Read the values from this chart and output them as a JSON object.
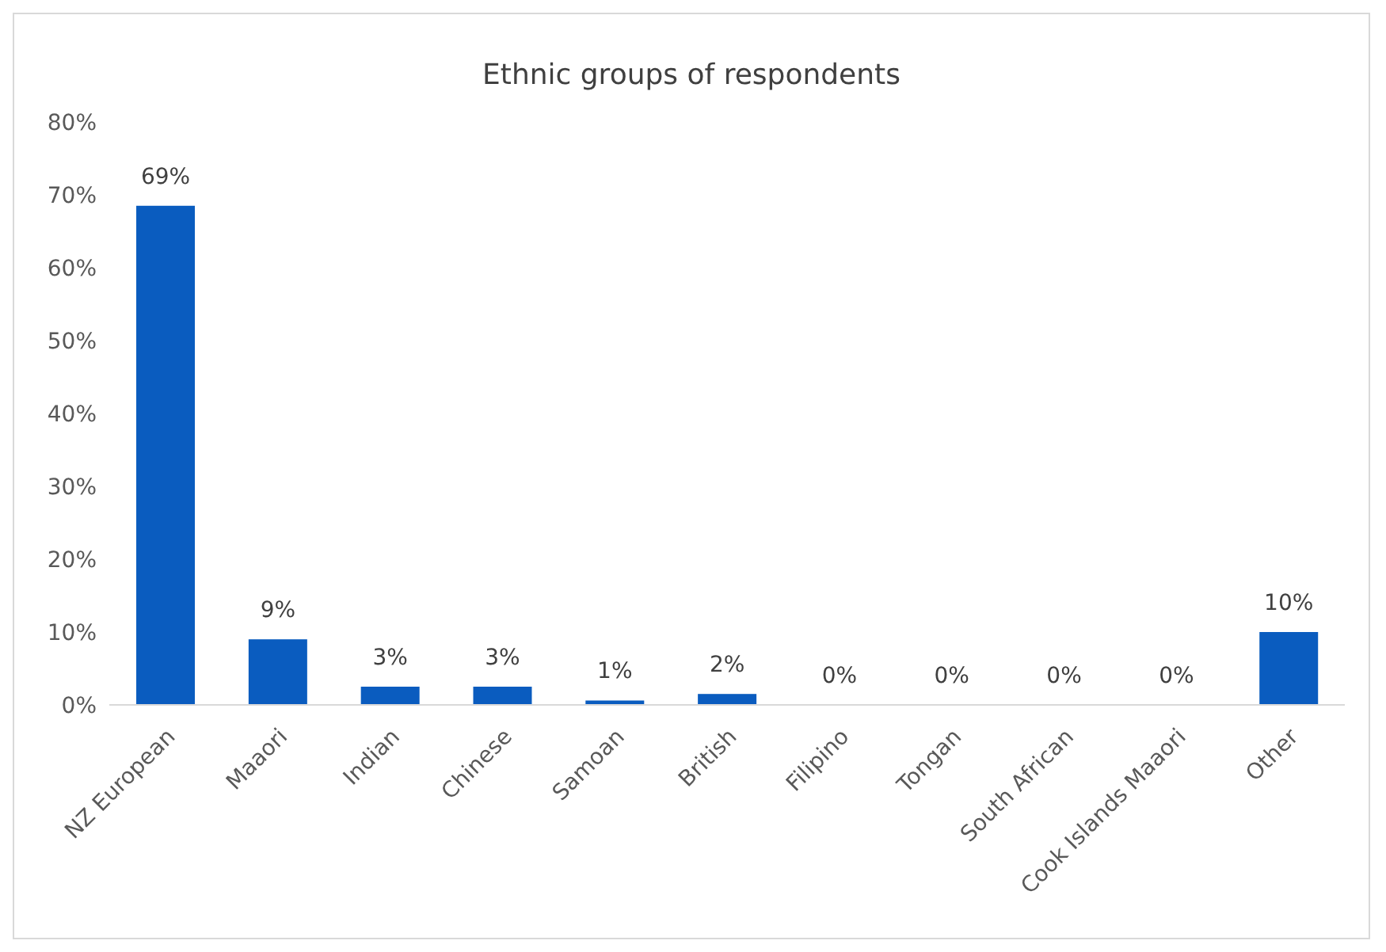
{
  "chart_data": {
    "type": "bar",
    "title": "Ethnic groups of respondents",
    "categories": [
      "NZ European",
      "Maaori",
      "Indian",
      "Chinese",
      "Samoan",
      "British",
      "Filipino",
      "Tongan",
      "South African",
      "Cook Islands Maaori",
      "Other"
    ],
    "values": [
      68.5,
      9,
      2.5,
      2.5,
      0.6,
      1.5,
      0,
      0,
      0,
      0,
      10
    ],
    "value_labels": [
      "69%",
      "9%",
      "3%",
      "3%",
      "1%",
      "2%",
      "0%",
      "0%",
      "0%",
      "0%",
      "10%"
    ],
    "color": "#0a5cbf",
    "ylim": [
      0,
      80
    ],
    "yticks": [
      {
        "value": 0,
        "label": "0%"
      },
      {
        "value": 10,
        "label": "10%"
      },
      {
        "value": 20,
        "label": "20%"
      },
      {
        "value": 30,
        "label": "30%"
      },
      {
        "value": 40,
        "label": "40%"
      },
      {
        "value": 50,
        "label": "50%"
      },
      {
        "value": 60,
        "label": "60%"
      },
      {
        "value": 70,
        "label": "70%"
      },
      {
        "value": 80,
        "label": "80%"
      }
    ],
    "grid": false,
    "legend": false
  }
}
